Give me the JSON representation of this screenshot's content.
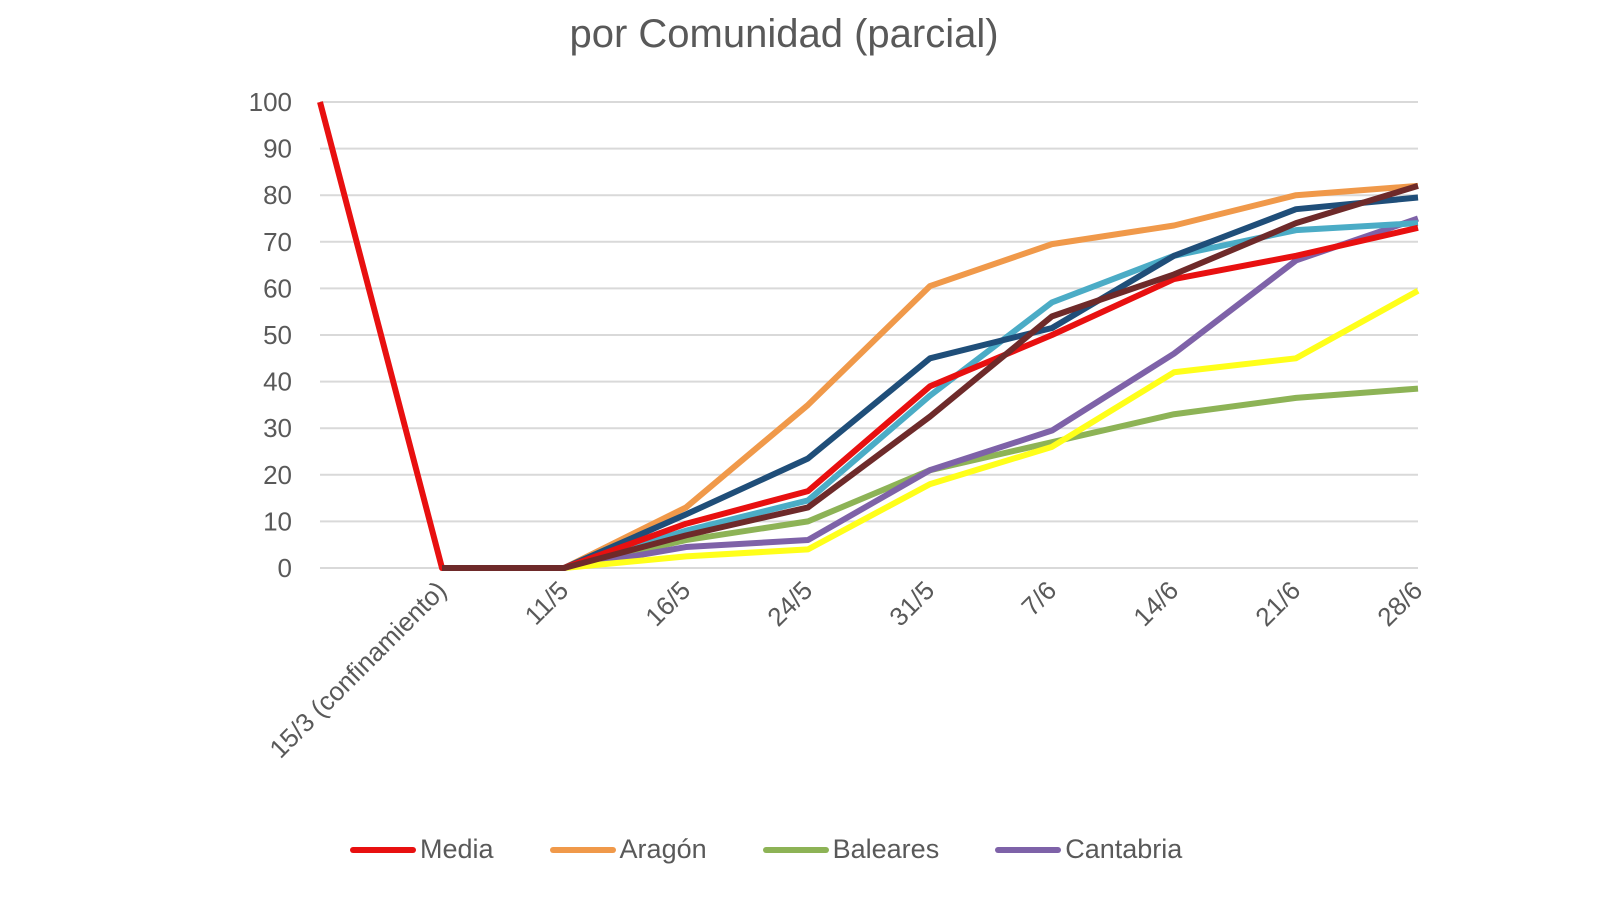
{
  "chart_data": {
    "type": "line",
    "title": "por Comunidad (parcial)",
    "xlabel": "",
    "ylabel": "",
    "ylim": [
      0,
      100
    ],
    "yticks": [
      "0",
      "10",
      "20",
      "30",
      "40",
      "50",
      "60",
      "70",
      "80",
      "90",
      "100"
    ],
    "grid": true,
    "legend_position": "bottom",
    "categories": [
      "",
      "15/3 (confinamiento)",
      "11/5",
      "16/5",
      "24/5",
      "31/5",
      "7/6",
      "14/6",
      "21/6",
      "28/6"
    ],
    "series": [
      {
        "name": "Media",
        "color": "#E81010",
        "values": [
          100,
          0,
          0,
          9.5,
          16.5,
          39,
          50,
          62,
          67,
          73
        ]
      },
      {
        "name": "Aragón",
        "color": "#F0994A",
        "values": [
          null,
          0,
          0,
          13,
          35,
          60.5,
          69.5,
          73.5,
          80,
          82
        ]
      },
      {
        "name": "Baleares",
        "color": "#8DB356",
        "values": [
          null,
          0,
          0,
          6,
          10,
          21,
          27,
          33,
          36.5,
          38.5
        ]
      },
      {
        "name": "Cantabria",
        "color": "#7E62A8",
        "values": [
          null,
          0,
          0,
          4.5,
          6,
          21,
          29.5,
          46,
          66,
          75
        ]
      },
      {
        "name": "",
        "color": "#FFFF1A",
        "values": [
          null,
          0,
          0,
          2.5,
          4,
          18,
          26,
          42,
          45,
          59.5
        ]
      },
      {
        "name": "",
        "color": "#4BACC6",
        "values": [
          null,
          0,
          0,
          8,
          14.5,
          37,
          57,
          67,
          72.5,
          74
        ]
      },
      {
        "name": "",
        "color": "#1F4E79",
        "values": [
          null,
          0,
          0,
          11.5,
          23.5,
          45,
          51.5,
          67,
          77,
          79.5
        ]
      },
      {
        "name": "",
        "color": "#6E2A2A",
        "values": [
          null,
          0,
          0,
          7,
          13,
          32.5,
          54,
          63,
          74,
          82
        ]
      }
    ]
  }
}
